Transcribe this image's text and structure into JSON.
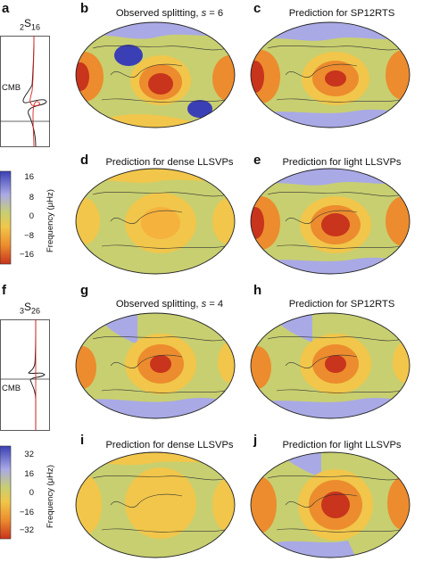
{
  "panel_labels": {
    "a": "a",
    "b": "b",
    "c": "c",
    "d": "d",
    "e": "e",
    "f": "f",
    "g": "g",
    "h": "h",
    "i": "i",
    "j": "j"
  },
  "titles": {
    "b_prefix": "Observed splitting, ",
    "b_var": "s",
    "b_suffix": " = 6",
    "c": "Prediction for SP12RTS",
    "d": "Prediction for dense LLSVPs",
    "e": "Prediction for light LLSVPs",
    "g_prefix": "Observed splitting, ",
    "g_var": "s",
    "g_suffix": " = 4",
    "h": "Prediction for SP12RTS",
    "i": "Prediction for dense LLSVPs",
    "j": "Prediction for light LLSVPs"
  },
  "mode_a": {
    "pre": "2",
    "letter": "S",
    "post": "16"
  },
  "mode_f": {
    "pre": "3",
    "letter": "S",
    "post": "26"
  },
  "cmb_label": "CMB",
  "colorbar_top": {
    "ticks": [
      "16",
      "8",
      "0",
      "−8",
      "−16"
    ],
    "label": "Frequency (μHz)"
  },
  "colorbar_bottom": {
    "ticks": [
      "32",
      "16",
      "0",
      "−16",
      "−32"
    ],
    "label": "Frequency (μHz)"
  },
  "colors": {
    "blue": "#3b3fb5",
    "lightblue": "#a9a9e6",
    "olive": "#c8cf70",
    "yellow": "#f1c64a",
    "orange": "#ec8c2e",
    "red": "#c8341c"
  }
}
